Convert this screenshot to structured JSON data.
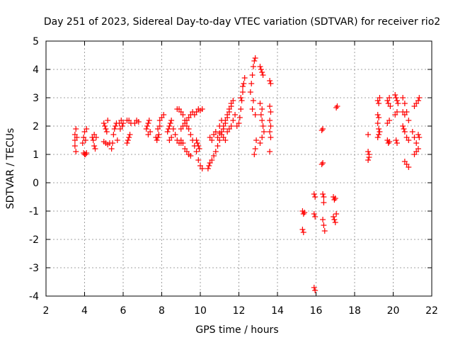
{
  "chart_data": {
    "type": "scatter",
    "title": "Day 251 of 2023, Sidereal Day-to-day VTEC variation (SDTVAR) for receiver rio2",
    "xlabel": "GPS time / hours",
    "ylabel": "SDTVAR / TECUs",
    "xlim": [
      2,
      22
    ],
    "ylim": [
      -4,
      5
    ],
    "xticks": [
      2,
      4,
      6,
      8,
      10,
      12,
      14,
      16,
      18,
      20,
      22
    ],
    "yticks": [
      -4,
      -3,
      -2,
      -1,
      0,
      1,
      2,
      3,
      4,
      5
    ],
    "grid": true,
    "marker": "plus",
    "color": "#ff0000",
    "series": [
      {
        "name": "rio2",
        "points": [
          [
            3.5,
            1.7
          ],
          [
            3.5,
            1.5
          ],
          [
            3.5,
            1.3
          ],
          [
            3.55,
            1.1
          ],
          [
            3.55,
            1.9
          ],
          [
            3.6,
            1.6
          ],
          [
            3.9,
            1.4
          ],
          [
            3.95,
            1.6
          ],
          [
            4.0,
            1.8
          ],
          [
            4.05,
            1.5
          ],
          [
            4.1,
            1.9
          ],
          [
            3.95,
            1.05
          ],
          [
            4.0,
            1.0
          ],
          [
            4.05,
            1.0
          ],
          [
            4.1,
            1.05
          ],
          [
            4.4,
            1.6
          ],
          [
            4.45,
            1.5
          ],
          [
            4.5,
            1.3
          ],
          [
            4.55,
            1.2
          ],
          [
            4.6,
            1.6
          ],
          [
            4.5,
            1.7
          ],
          [
            5.0,
            2.1
          ],
          [
            5.05,
            2.0
          ],
          [
            5.1,
            1.9
          ],
          [
            5.15,
            1.8
          ],
          [
            5.2,
            2.2
          ],
          [
            5.0,
            1.45
          ],
          [
            5.1,
            1.4
          ],
          [
            5.2,
            1.35
          ],
          [
            5.3,
            1.4
          ],
          [
            5.4,
            1.2
          ],
          [
            5.45,
            1.4
          ],
          [
            5.5,
            1.7
          ],
          [
            5.55,
            1.9
          ],
          [
            5.6,
            2.0
          ],
          [
            5.65,
            2.1
          ],
          [
            5.7,
            1.5
          ],
          [
            5.8,
            2.1
          ],
          [
            5.9,
            2.2
          ],
          [
            6.0,
            2.1
          ],
          [
            5.85,
            1.9
          ],
          [
            5.95,
            2.0
          ],
          [
            6.2,
            1.4
          ],
          [
            6.25,
            1.5
          ],
          [
            6.3,
            1.6
          ],
          [
            6.35,
            1.7
          ],
          [
            6.2,
            2.2
          ],
          [
            6.3,
            2.2
          ],
          [
            6.4,
            2.1
          ],
          [
            6.6,
            2.1
          ],
          [
            6.7,
            2.2
          ],
          [
            6.8,
            2.15
          ],
          [
            7.2,
            1.9
          ],
          [
            7.25,
            2.0
          ],
          [
            7.3,
            2.1
          ],
          [
            7.35,
            2.2
          ],
          [
            7.3,
            1.7
          ],
          [
            7.4,
            1.8
          ],
          [
            7.7,
            1.6
          ],
          [
            7.75,
            1.5
          ],
          [
            7.8,
            1.6
          ],
          [
            7.85,
            1.7
          ],
          [
            7.9,
            2.2
          ],
          [
            8.0,
            2.3
          ],
          [
            8.1,
            2.4
          ],
          [
            7.8,
            1.9
          ],
          [
            7.9,
            2.0
          ],
          [
            8.3,
            1.8
          ],
          [
            8.35,
            1.9
          ],
          [
            8.4,
            2.0
          ],
          [
            8.45,
            2.1
          ],
          [
            8.5,
            2.2
          ],
          [
            8.4,
            1.5
          ],
          [
            8.5,
            1.6
          ],
          [
            8.6,
            1.9
          ],
          [
            8.7,
            1.7
          ],
          [
            8.8,
            1.5
          ],
          [
            8.9,
            1.4
          ],
          [
            9.0,
            1.4
          ],
          [
            8.8,
            2.6
          ],
          [
            8.9,
            2.6
          ],
          [
            9.0,
            2.5
          ],
          [
            9.1,
            2.4
          ],
          [
            9.2,
            2.2
          ],
          [
            9.3,
            2.0
          ],
          [
            9.4,
            1.9
          ],
          [
            9.5,
            1.7
          ],
          [
            9.6,
            1.5
          ],
          [
            9.7,
            1.3
          ],
          [
            9.8,
            1.1
          ],
          [
            9.9,
            0.8
          ],
          [
            10.0,
            0.6
          ],
          [
            10.1,
            0.5
          ],
          [
            9.0,
            1.5
          ],
          [
            9.1,
            1.4
          ],
          [
            9.2,
            1.2
          ],
          [
            9.3,
            1.1
          ],
          [
            9.4,
            1.0
          ],
          [
            9.5,
            0.95
          ],
          [
            9.0,
            1.9
          ],
          [
            9.1,
            2.0
          ],
          [
            9.2,
            2.1
          ],
          [
            9.3,
            2.2
          ],
          [
            9.4,
            2.3
          ],
          [
            9.5,
            2.4
          ],
          [
            9.6,
            2.5
          ],
          [
            9.7,
            2.4
          ],
          [
            9.8,
            2.5
          ],
          [
            9.9,
            2.6
          ],
          [
            10.0,
            2.55
          ],
          [
            10.1,
            2.6
          ],
          [
            9.8,
            1.5
          ],
          [
            9.85,
            1.4
          ],
          [
            9.9,
            1.3
          ],
          [
            9.95,
            1.2
          ],
          [
            10.4,
            0.5
          ],
          [
            10.45,
            0.6
          ],
          [
            10.5,
            0.7
          ],
          [
            10.6,
            0.8
          ],
          [
            10.7,
            0.95
          ],
          [
            10.8,
            1.1
          ],
          [
            10.9,
            1.3
          ],
          [
            11.0,
            1.5
          ],
          [
            11.1,
            1.7
          ],
          [
            11.2,
            1.9
          ],
          [
            11.3,
            2.1
          ],
          [
            11.4,
            2.3
          ],
          [
            11.5,
            2.5
          ],
          [
            11.6,
            2.7
          ],
          [
            11.7,
            2.9
          ],
          [
            10.5,
            1.6
          ],
          [
            10.6,
            1.5
          ],
          [
            10.7,
            1.7
          ],
          [
            10.8,
            1.8
          ],
          [
            10.9,
            1.6
          ],
          [
            11.0,
            1.75
          ],
          [
            11.1,
            1.8
          ],
          [
            11.2,
            2.0
          ],
          [
            11.3,
            2.2
          ],
          [
            11.4,
            2.4
          ],
          [
            11.5,
            2.6
          ],
          [
            11.6,
            2.8
          ],
          [
            11.0,
            2.0
          ],
          [
            11.1,
            2.2
          ],
          [
            11.2,
            1.6
          ],
          [
            11.3,
            1.5
          ],
          [
            11.4,
            1.8
          ],
          [
            11.5,
            1.9
          ],
          [
            11.6,
            2.0
          ],
          [
            11.7,
            2.2
          ],
          [
            11.8,
            2.4
          ],
          [
            11.9,
            2.0
          ],
          [
            12.0,
            2.1
          ],
          [
            12.05,
            2.3
          ],
          [
            12.1,
            2.6
          ],
          [
            12.15,
            2.9
          ],
          [
            12.2,
            3.2
          ],
          [
            12.25,
            3.5
          ],
          [
            12.3,
            3.7
          ],
          [
            12.1,
            3.0
          ],
          [
            12.2,
            3.4
          ],
          [
            12.6,
            3.2
          ],
          [
            12.65,
            3.5
          ],
          [
            12.7,
            3.8
          ],
          [
            12.75,
            4.1
          ],
          [
            12.8,
            4.3
          ],
          [
            12.85,
            4.4
          ],
          [
            12.7,
            2.6
          ],
          [
            12.75,
            2.9
          ],
          [
            12.8,
            1.0
          ],
          [
            12.85,
            1.2
          ],
          [
            12.9,
            1.5
          ],
          [
            12.85,
            2.4
          ],
          [
            13.1,
            4.1
          ],
          [
            13.15,
            4.0
          ],
          [
            13.2,
            3.9
          ],
          [
            13.25,
            3.8
          ],
          [
            13.1,
            2.8
          ],
          [
            13.2,
            2.6
          ],
          [
            13.15,
            2.4
          ],
          [
            13.2,
            2.2
          ],
          [
            13.25,
            2.0
          ],
          [
            13.1,
            1.4
          ],
          [
            13.2,
            1.6
          ],
          [
            13.3,
            1.8
          ],
          [
            13.6,
            3.6
          ],
          [
            13.65,
            3.5
          ],
          [
            13.6,
            2.7
          ],
          [
            13.65,
            2.5
          ],
          [
            13.6,
            2.2
          ],
          [
            13.65,
            2.0
          ],
          [
            13.6,
            1.8
          ],
          [
            13.65,
            1.6
          ],
          [
            13.6,
            1.1
          ],
          [
            15.3,
            -1.0
          ],
          [
            15.35,
            -1.1
          ],
          [
            15.4,
            -1.05
          ],
          [
            15.3,
            -1.65
          ],
          [
            15.35,
            -1.75
          ],
          [
            15.9,
            -0.4
          ],
          [
            15.95,
            -0.5
          ],
          [
            15.9,
            -1.1
          ],
          [
            15.95,
            -1.2
          ],
          [
            15.9,
            -3.7
          ],
          [
            15.95,
            -3.8
          ],
          [
            16.3,
            1.85
          ],
          [
            16.35,
            1.9
          ],
          [
            16.3,
            0.65
          ],
          [
            16.35,
            0.7
          ],
          [
            16.35,
            -0.4
          ],
          [
            16.4,
            -0.5
          ],
          [
            16.4,
            -0.7
          ],
          [
            16.35,
            -1.3
          ],
          [
            16.4,
            -1.5
          ],
          [
            16.45,
            -1.7
          ],
          [
            16.9,
            -0.5
          ],
          [
            16.95,
            -0.6
          ],
          [
            17.0,
            -0.55
          ],
          [
            16.9,
            -1.2
          ],
          [
            16.95,
            -1.3
          ],
          [
            17.0,
            -1.4
          ],
          [
            17.05,
            -1.1
          ],
          [
            17.1,
            2.7
          ],
          [
            17.05,
            2.65
          ],
          [
            18.7,
            1.7
          ],
          [
            18.7,
            1.1
          ],
          [
            18.75,
            1.0
          ],
          [
            18.7,
            0.8
          ],
          [
            18.75,
            0.9
          ],
          [
            19.2,
            2.9
          ],
          [
            19.25,
            2.8
          ],
          [
            19.3,
            3.0
          ],
          [
            19.2,
            2.4
          ],
          [
            19.25,
            2.3
          ],
          [
            19.2,
            2.1
          ],
          [
            19.25,
            1.9
          ],
          [
            19.3,
            1.8
          ],
          [
            19.2,
            1.6
          ],
          [
            19.25,
            1.7
          ],
          [
            19.7,
            2.9
          ],
          [
            19.75,
            2.8
          ],
          [
            19.8,
            3.0
          ],
          [
            19.85,
            2.7
          ],
          [
            19.7,
            2.1
          ],
          [
            19.8,
            2.2
          ],
          [
            19.7,
            1.5
          ],
          [
            19.75,
            1.4
          ],
          [
            19.8,
            1.45
          ],
          [
            20.1,
            3.1
          ],
          [
            20.15,
            3.0
          ],
          [
            20.2,
            2.9
          ],
          [
            20.25,
            2.8
          ],
          [
            20.1,
            2.4
          ],
          [
            20.2,
            2.5
          ],
          [
            20.15,
            1.5
          ],
          [
            20.2,
            1.4
          ],
          [
            20.5,
            3.0
          ],
          [
            20.6,
            2.8
          ],
          [
            20.7,
            2.5
          ],
          [
            20.8,
            2.2
          ],
          [
            20.5,
            2.5
          ],
          [
            20.6,
            2.4
          ],
          [
            20.5,
            2.0
          ],
          [
            20.55,
            1.9
          ],
          [
            20.6,
            1.8
          ],
          [
            20.7,
            1.6
          ],
          [
            20.8,
            1.5
          ],
          [
            20.6,
            0.75
          ],
          [
            20.7,
            0.65
          ],
          [
            20.8,
            0.55
          ],
          [
            21.0,
            1.8
          ],
          [
            21.1,
            1.6
          ],
          [
            21.2,
            1.4
          ],
          [
            21.3,
            1.2
          ],
          [
            21.1,
            1.0
          ],
          [
            21.2,
            1.1
          ],
          [
            21.3,
            1.7
          ],
          [
            21.35,
            1.6
          ],
          [
            21.1,
            2.7
          ],
          [
            21.2,
            2.8
          ],
          [
            21.3,
            2.9
          ],
          [
            21.35,
            3.0
          ]
        ]
      }
    ]
  }
}
